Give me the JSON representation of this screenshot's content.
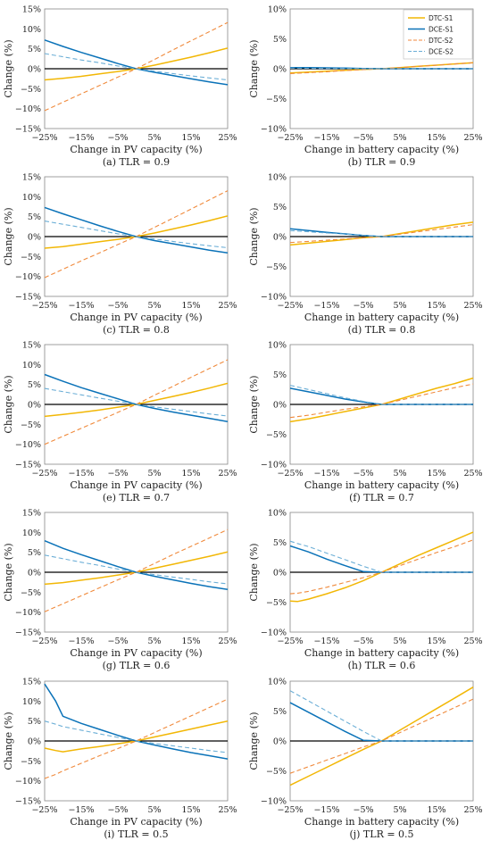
{
  "colors": {
    "DTC-S1": "#f2b705",
    "DCE-S1": "#0a72b8",
    "DTC-S2": "#f08a3c",
    "DCE-S2": "#6baed6"
  },
  "chart_data": [
    {
      "id": "a",
      "type": "line",
      "caption": "(a) TLR = 0.9",
      "xlabel": "Change in PV capacity (%)",
      "ylabel": "Change (%)",
      "xlim": [
        -25,
        25
      ],
      "ylim": [
        -15,
        15
      ],
      "xticks": [
        "−25%",
        "−15%",
        "−5%",
        "5%",
        "15%",
        "25%"
      ],
      "yticks": [
        "15%",
        "10%",
        "5%",
        "0%",
        "−5%",
        "−10%",
        "−15%"
      ],
      "x": [
        -25,
        -20,
        -15,
        -10,
        -5,
        0,
        5,
        10,
        15,
        20,
        25
      ],
      "series": [
        {
          "name": "DTC-S1",
          "dash": false,
          "values": [
            -2.8,
            -2.4,
            -1.9,
            -1.3,
            -0.7,
            0,
            0.9,
            1.9,
            2.9,
            4.0,
            5.2
          ]
        },
        {
          "name": "DCE-S1",
          "dash": false,
          "values": [
            7.2,
            5.6,
            4.1,
            2.7,
            1.3,
            0,
            -0.9,
            -1.7,
            -2.5,
            -3.3,
            -4.0
          ]
        },
        {
          "name": "DTC-S2",
          "dash": true,
          "values": [
            -10.5,
            -8.4,
            -6.3,
            -4.2,
            -2.1,
            0,
            2.3,
            4.7,
            7.0,
            9.3,
            11.6
          ]
        },
        {
          "name": "DCE-S2",
          "dash": true,
          "values": [
            3.8,
            3.0,
            2.2,
            1.5,
            0.7,
            0,
            -0.6,
            -1.2,
            -1.8,
            -2.3,
            -2.8
          ]
        }
      ]
    },
    {
      "id": "b",
      "type": "line",
      "caption": "(b) TLR = 0.9",
      "xlabel": "Change in battery capacity (%)",
      "ylabel": "Change (%)",
      "xlim": [
        -25,
        25
      ],
      "ylim": [
        -10,
        10
      ],
      "xticks": [
        "−25%",
        "−15%",
        "−5%",
        "5%",
        "15%",
        "25%"
      ],
      "yticks": [
        "10%",
        "5%",
        "0%",
        "−5%",
        "−10%"
      ],
      "legend": [
        "DTC-S1",
        "DCE-S1",
        "DTC-S2",
        "DCE-S2"
      ],
      "x": [
        -25,
        -20,
        -15,
        -10,
        -5,
        0,
        5,
        10,
        15,
        20,
        25
      ],
      "series": [
        {
          "name": "DTC-S1",
          "dash": false,
          "values": [
            -0.7,
            -0.55,
            -0.4,
            -0.25,
            -0.1,
            0,
            0.2,
            0.4,
            0.6,
            0.8,
            1.0
          ]
        },
        {
          "name": "DCE-S1",
          "dash": false,
          "values": [
            0.2,
            0.2,
            0.15,
            0.1,
            0.05,
            0,
            0,
            0,
            0,
            0,
            0
          ]
        },
        {
          "name": "DTC-S2",
          "dash": true,
          "values": [
            -0.8,
            -0.65,
            -0.5,
            -0.3,
            -0.15,
            0,
            0.2,
            0.4,
            0.6,
            0.8,
            1.0
          ]
        },
        {
          "name": "DCE-S2",
          "dash": true,
          "values": [
            0.1,
            0.08,
            0.06,
            0.04,
            0.02,
            0,
            0,
            0,
            0,
            0,
            0
          ]
        }
      ]
    },
    {
      "id": "c",
      "type": "line",
      "caption": "(c) TLR = 0.8",
      "xlabel": "Change in PV capacity (%)",
      "ylabel": "Change (%)",
      "xlim": [
        -25,
        25
      ],
      "ylim": [
        -15,
        15
      ],
      "xticks": [
        "−25%",
        "−15%",
        "−5%",
        "5%",
        "15%",
        "25%"
      ],
      "yticks": [
        "15%",
        "10%",
        "5%",
        "0%",
        "−5%",
        "−10%",
        "−15%"
      ],
      "x": [
        -25,
        -20,
        -15,
        -10,
        -5,
        0,
        5,
        10,
        15,
        20,
        25
      ],
      "series": [
        {
          "name": "DTC-S1",
          "dash": false,
          "values": [
            -2.9,
            -2.5,
            -1.9,
            -1.3,
            -0.7,
            0,
            0.9,
            1.9,
            2.9,
            4.0,
            5.2
          ]
        },
        {
          "name": "DCE-S1",
          "dash": false,
          "values": [
            7.3,
            5.7,
            4.2,
            2.7,
            1.3,
            0,
            -1.0,
            -1.8,
            -2.6,
            -3.4,
            -4.1
          ]
        },
        {
          "name": "DTC-S2",
          "dash": true,
          "values": [
            -10.3,
            -8.2,
            -6.1,
            -4.1,
            -2.0,
            0,
            2.3,
            4.6,
            6.9,
            9.2,
            11.5
          ]
        },
        {
          "name": "DCE-S2",
          "dash": true,
          "values": [
            3.9,
            3.1,
            2.3,
            1.5,
            0.7,
            0,
            -0.6,
            -1.2,
            -1.8,
            -2.3,
            -2.8
          ]
        }
      ]
    },
    {
      "id": "d",
      "type": "line",
      "caption": "(d) TLR = 0.8",
      "xlabel": "Change in battery capacity (%)",
      "ylabel": "Change (%)",
      "xlim": [
        -25,
        25
      ],
      "ylim": [
        -10,
        10
      ],
      "xticks": [
        "−25%",
        "−15%",
        "−5%",
        "5%",
        "15%",
        "25%"
      ],
      "yticks": [
        "10%",
        "5%",
        "0%",
        "−5%",
        "−10%"
      ],
      "x": [
        -25,
        -20,
        -15,
        -10,
        -5,
        0,
        5,
        10,
        15,
        20,
        25
      ],
      "series": [
        {
          "name": "DTC-S1",
          "dash": false,
          "values": [
            -1.4,
            -1.1,
            -0.8,
            -0.5,
            -0.2,
            0,
            0.5,
            1.0,
            1.5,
            2.0,
            2.4
          ]
        },
        {
          "name": "DCE-S1",
          "dash": false,
          "values": [
            1.3,
            1.0,
            0.7,
            0.45,
            0.2,
            0,
            0,
            0,
            0,
            0,
            0
          ]
        },
        {
          "name": "DTC-S2",
          "dash": true,
          "values": [
            -1.0,
            -0.8,
            -0.6,
            -0.4,
            -0.2,
            0,
            0.4,
            0.8,
            1.2,
            1.6,
            2.0
          ]
        },
        {
          "name": "DCE-S2",
          "dash": true,
          "values": [
            1.0,
            0.8,
            0.6,
            0.4,
            0.2,
            0,
            0,
            0,
            0,
            0,
            0
          ]
        }
      ]
    },
    {
      "id": "e",
      "type": "line",
      "caption": "(e) TLR = 0.7",
      "xlabel": "Change in PV capacity (%)",
      "ylabel": "Change (%)",
      "xlim": [
        -25,
        25
      ],
      "ylim": [
        -15,
        15
      ],
      "xticks": [
        "−25%",
        "−15%",
        "−5%",
        "5%",
        "15%",
        "25%"
      ],
      "yticks": [
        "15%",
        "10%",
        "5%",
        "0%",
        "−5%",
        "−10%",
        "−15%"
      ],
      "x": [
        -25,
        -20,
        -15,
        -10,
        -5,
        0,
        5,
        10,
        15,
        20,
        25
      ],
      "series": [
        {
          "name": "DTC-S1",
          "dash": false,
          "values": [
            -3.0,
            -2.5,
            -2.0,
            -1.4,
            -0.7,
            0,
            1.0,
            2.0,
            3.0,
            4.1,
            5.3
          ]
        },
        {
          "name": "DCE-S1",
          "dash": false,
          "values": [
            7.5,
            5.8,
            4.2,
            2.8,
            1.4,
            0,
            -1.0,
            -1.9,
            -2.7,
            -3.5,
            -4.3
          ]
        },
        {
          "name": "DTC-S2",
          "dash": true,
          "values": [
            -10.0,
            -8.0,
            -6.0,
            -4.0,
            -2.0,
            0,
            2.3,
            4.5,
            6.8,
            9.0,
            11.2
          ]
        },
        {
          "name": "DCE-S2",
          "dash": true,
          "values": [
            4.0,
            3.2,
            2.4,
            1.6,
            0.8,
            0,
            -0.6,
            -1.2,
            -1.8,
            -2.4,
            -2.9
          ]
        }
      ]
    },
    {
      "id": "f",
      "type": "line",
      "caption": "(f) TLR = 0.7",
      "xlabel": "Change in battery capacity (%)",
      "ylabel": "Change (%)",
      "xlim": [
        -25,
        25
      ],
      "ylim": [
        -10,
        10
      ],
      "xticks": [
        "−25%",
        "−15%",
        "−5%",
        "5%",
        "15%",
        "25%"
      ],
      "yticks": [
        "10%",
        "5%",
        "0%",
        "−5%",
        "−10%"
      ],
      "x": [
        -25,
        -20,
        -15,
        -10,
        -5,
        0,
        5,
        10,
        15,
        20,
        25
      ],
      "series": [
        {
          "name": "DTC-S1",
          "dash": false,
          "values": [
            -2.9,
            -2.4,
            -1.8,
            -1.2,
            -0.6,
            0,
            0.9,
            1.8,
            2.7,
            3.5,
            4.4
          ]
        },
        {
          "name": "DCE-S1",
          "dash": false,
          "values": [
            2.7,
            2.1,
            1.5,
            0.9,
            0.4,
            0,
            0,
            0,
            0,
            0,
            0
          ]
        },
        {
          "name": "DTC-S2",
          "dash": true,
          "values": [
            -2.2,
            -1.8,
            -1.3,
            -0.8,
            -0.4,
            0,
            0.7,
            1.4,
            2.1,
            2.8,
            3.4
          ]
        },
        {
          "name": "DCE-S2",
          "dash": true,
          "values": [
            3.2,
            2.5,
            1.8,
            1.1,
            0.5,
            0,
            0,
            0,
            0,
            0,
            0
          ]
        }
      ]
    },
    {
      "id": "g",
      "type": "line",
      "caption": "(g) TLR = 0.6",
      "xlabel": "Change in PV capacity (%)",
      "ylabel": "Change (%)",
      "xlim": [
        -25,
        25
      ],
      "ylim": [
        -15,
        15
      ],
      "xticks": [
        "−25%",
        "−15%",
        "−5%",
        "5%",
        "15%",
        "25%"
      ],
      "yticks": [
        "15%",
        "10%",
        "5%",
        "0%",
        "−5%",
        "−10%",
        "−15%"
      ],
      "x": [
        -25,
        -20,
        -15,
        -10,
        -5,
        0,
        5,
        10,
        15,
        20,
        25
      ],
      "series": [
        {
          "name": "DTC-S1",
          "dash": false,
          "values": [
            -3.0,
            -2.6,
            -2.0,
            -1.4,
            -0.7,
            0,
            1.0,
            2.0,
            3.0,
            4.0,
            5.1
          ]
        },
        {
          "name": "DCE-S1",
          "dash": false,
          "values": [
            7.9,
            6.0,
            4.4,
            2.9,
            1.4,
            0,
            -1.0,
            -1.9,
            -2.8,
            -3.6,
            -4.3
          ]
        },
        {
          "name": "DTC-S2",
          "dash": true,
          "values": [
            -9.9,
            -7.9,
            -5.9,
            -3.9,
            -1.9,
            0,
            2.2,
            4.4,
            6.5,
            8.6,
            10.7
          ]
        },
        {
          "name": "DCE-S2",
          "dash": true,
          "values": [
            4.3,
            3.4,
            2.5,
            1.7,
            0.8,
            0,
            -0.6,
            -1.2,
            -1.8,
            -2.4,
            -2.9
          ]
        }
      ]
    },
    {
      "id": "h",
      "type": "line",
      "caption": "(h) TLR = 0.6",
      "xlabel": "Change in battery capacity (%)",
      "ylabel": "Change (%)",
      "xlim": [
        -25,
        25
      ],
      "ylim": [
        -10,
        10
      ],
      "xticks": [
        "−25%",
        "−15%",
        "−5%",
        "5%",
        "15%",
        "25%"
      ],
      "yticks": [
        "10%",
        "5%",
        "0%",
        "−5%",
        "−10%"
      ],
      "x": [
        -25,
        -23,
        -20,
        -15,
        -10,
        -5,
        0,
        5,
        10,
        15,
        20,
        25
      ],
      "series": [
        {
          "name": "DTC-S1",
          "dash": false,
          "values": [
            -4.8,
            -4.9,
            -4.5,
            -3.6,
            -2.6,
            -1.4,
            0,
            1.4,
            2.8,
            4.1,
            5.4,
            6.7
          ]
        },
        {
          "name": "DCE-S1",
          "dash": false,
          "values": [
            4.4,
            4.0,
            3.4,
            2.2,
            1.1,
            0.1,
            0,
            0,
            0,
            0,
            0,
            0
          ]
        },
        {
          "name": "DTC-S2",
          "dash": true,
          "values": [
            -3.6,
            -3.5,
            -3.2,
            -2.5,
            -1.7,
            -0.9,
            0,
            1.1,
            2.2,
            3.3,
            4.3,
            5.4
          ]
        },
        {
          "name": "DCE-S2",
          "dash": true,
          "values": [
            5.2,
            4.8,
            4.3,
            3.2,
            2.1,
            1.0,
            0,
            0,
            0,
            0,
            0,
            0
          ]
        }
      ]
    },
    {
      "id": "i",
      "type": "line",
      "caption": "(i) TLR = 0.5",
      "xlabel": "Change in PV capacity (%)",
      "ylabel": "Change (%)",
      "xlim": [
        -25,
        25
      ],
      "ylim": [
        -15,
        15
      ],
      "xticks": [
        "−25%",
        "−15%",
        "−5%",
        "5%",
        "15%",
        "25%"
      ],
      "yticks": [
        "15%",
        "10%",
        "5%",
        "0%",
        "−5%",
        "−10%",
        "−15%"
      ],
      "x": [
        -25,
        -22,
        -20,
        -15,
        -10,
        -5,
        0,
        5,
        10,
        15,
        20,
        25
      ],
      "series": [
        {
          "name": "DTC-S1",
          "dash": false,
          "values": [
            -1.8,
            -2.4,
            -2.7,
            -2.0,
            -1.4,
            -0.7,
            0,
            1.0,
            2.0,
            3.0,
            4.0,
            5.0
          ]
        },
        {
          "name": "DCE-S1",
          "dash": false,
          "values": [
            14.3,
            10.0,
            6.2,
            4.4,
            2.9,
            1.4,
            0,
            -1.0,
            -2.0,
            -2.9,
            -3.7,
            -4.5
          ]
        },
        {
          "name": "DTC-S2",
          "dash": true,
          "values": [
            -9.4,
            -8.4,
            -7.5,
            -5.6,
            -3.7,
            -1.9,
            0,
            2.1,
            4.2,
            6.3,
            8.4,
            10.5
          ]
        },
        {
          "name": "DCE-S2",
          "dash": true,
          "values": [
            5.0,
            4.2,
            3.6,
            2.7,
            1.8,
            0.9,
            0,
            -0.6,
            -1.2,
            -1.8,
            -2.4,
            -2.9
          ]
        }
      ]
    },
    {
      "id": "j",
      "type": "line",
      "caption": "(j) TLR = 0.5",
      "xlabel": "Change in battery capacity (%)",
      "ylabel": "Change (%)",
      "xlim": [
        -25,
        25
      ],
      "ylim": [
        -10,
        10
      ],
      "xticks": [
        "−25%",
        "−15%",
        "−5%",
        "5%",
        "15%",
        "25%"
      ],
      "yticks": [
        "10%",
        "5%",
        "0%",
        "−5%",
        "−10%"
      ],
      "x": [
        -25,
        -20,
        -15,
        -10,
        -5,
        0,
        5,
        10,
        15,
        20,
        25
      ],
      "series": [
        {
          "name": "DTC-S1",
          "dash": false,
          "values": [
            -7.4,
            -5.9,
            -4.4,
            -2.9,
            -1.4,
            0,
            1.8,
            3.6,
            5.4,
            7.2,
            9.0
          ]
        },
        {
          "name": "DCE-S1",
          "dash": false,
          "values": [
            6.4,
            4.8,
            3.2,
            1.6,
            0.1,
            0,
            0,
            0,
            0,
            0,
            0
          ]
        },
        {
          "name": "DTC-S2",
          "dash": true,
          "values": [
            -5.4,
            -4.3,
            -3.2,
            -2.1,
            -1.0,
            0,
            1.4,
            2.8,
            4.2,
            5.6,
            7.0
          ]
        },
        {
          "name": "DCE-S2",
          "dash": true,
          "values": [
            8.4,
            6.7,
            5.0,
            3.3,
            1.6,
            0,
            0,
            0,
            0,
            0,
            0
          ]
        }
      ]
    }
  ]
}
